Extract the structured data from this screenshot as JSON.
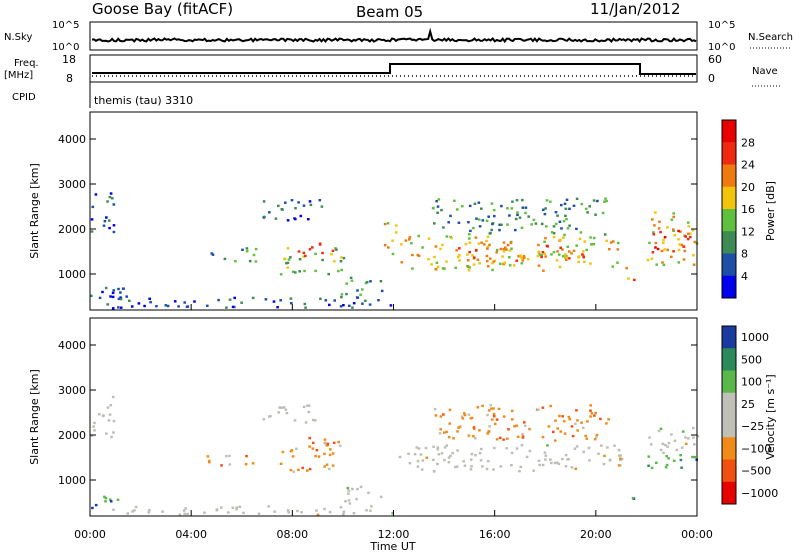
{
  "header": {
    "station": "Goose Bay (fitACF)",
    "beam": "Beam 05",
    "date": "11/Jan/2012"
  },
  "colors": {
    "power_scale": [
      "#0000ee",
      "#1d4fa8",
      "#3d8a55",
      "#5fbf3f",
      "#f2c40c",
      "#ee7a10",
      "#ef2a10",
      "#e80000"
    ],
    "velocity_scale": [
      "#e60000",
      "#f05010",
      "#f08a18",
      "#c0c0b8",
      "#c0c0b8",
      "#5ab84a",
      "#2a8a5a",
      "#1a3aa0"
    ],
    "ground_scatter": "#bdbdb5"
  },
  "noise_panel": {
    "left_label": "N.Sky",
    "right_label": "N.Search",
    "left_ticks": [
      "10^5",
      "10^0"
    ],
    "right_ticks": [
      "10^5",
      "10^0"
    ]
  },
  "freq_panel": {
    "left_label_1": "Freq.",
    "left_label_2": "[MHz]",
    "right_label": "Nave",
    "left_ticks": [
      "18",
      "8"
    ],
    "right_ticks": [
      "60",
      "0"
    ],
    "cpid_label": "CPID",
    "cpid_value": "themis (tau) 3310"
  },
  "time_axis": {
    "label": "Time UT",
    "ticks": [
      "00:00",
      "04:00",
      "08:00",
      "12:00",
      "16:00",
      "20:00",
      "00:00"
    ]
  },
  "chart_data": [
    {
      "type": "heatmap",
      "title": "Power",
      "ylabel": "Slant Range [km]",
      "ylim": [
        200,
        4600
      ],
      "yticks": [
        "1000",
        "2000",
        "3000",
        "4000"
      ],
      "xlim_hours": [
        0,
        24
      ],
      "colorbar_label": "Power [dB]",
      "colorbar_ticks": [
        "4",
        "8",
        "12",
        "16",
        "20",
        "24",
        "28"
      ],
      "blobs": [
        {
          "t0": 0.0,
          "t1": 0.9,
          "r0": 1900,
          "r1": 2900,
          "level": 1
        },
        {
          "t0": 0.0,
          "t1": 1.5,
          "r0": 400,
          "r1": 900,
          "level": 1
        },
        {
          "t0": 0.5,
          "t1": 12.0,
          "r0": 250,
          "r1": 500,
          "level": 1
        },
        {
          "t0": 4.6,
          "t1": 6.6,
          "r0": 1300,
          "r1": 1600,
          "level": 2
        },
        {
          "t0": 6.8,
          "t1": 9.2,
          "r0": 2200,
          "r1": 2700,
          "level": 1
        },
        {
          "t0": 7.5,
          "t1": 10.0,
          "r0": 1000,
          "r1": 1600,
          "level": 3
        },
        {
          "t0": 8.2,
          "t1": 9.6,
          "r0": 1350,
          "r1": 1750,
          "level": 5
        },
        {
          "t0": 9.8,
          "t1": 11.6,
          "r0": 500,
          "r1": 1000,
          "level": 2
        },
        {
          "t0": 11.6,
          "t1": 12.1,
          "r0": 1300,
          "r1": 2200,
          "level": 4
        },
        {
          "t0": 12.2,
          "t1": 21.2,
          "r0": 1100,
          "r1": 1900,
          "level": 4
        },
        {
          "t0": 14.5,
          "t1": 19.5,
          "r0": 1300,
          "r1": 1700,
          "level": 5
        },
        {
          "t0": 13.5,
          "t1": 20.5,
          "r0": 1900,
          "r1": 2700,
          "level": 2
        },
        {
          "t0": 21.1,
          "t1": 21.5,
          "r0": 700,
          "r1": 1000,
          "level": 5
        },
        {
          "t0": 22.0,
          "t1": 24.0,
          "r0": 1200,
          "r1": 2400,
          "level": 4
        },
        {
          "t0": 22.2,
          "t1": 23.7,
          "r0": 1500,
          "r1": 2000,
          "level": 6
        }
      ]
    },
    {
      "type": "heatmap",
      "title": "Velocity",
      "ylabel": "Slant Range [km]",
      "ylim": [
        200,
        4600
      ],
      "yticks": [
        "1000",
        "2000",
        "3000",
        "4000"
      ],
      "xlim_hours": [
        0,
        24
      ],
      "colorbar_label": "Velocity [m s⁻¹]",
      "colorbar_ticks": [
        "1000",
        "500",
        "100",
        "25",
        "−25",
        "−100",
        "−500",
        "−1000"
      ],
      "blobs": [
        {
          "t0": 0.0,
          "t1": 0.9,
          "r0": 1900,
          "r1": 2900,
          "cat": "ground"
        },
        {
          "t0": 0.0,
          "t1": 1.2,
          "r0": 400,
          "r1": 750,
          "cat": "pos"
        },
        {
          "t0": 0.5,
          "t1": 12.0,
          "r0": 250,
          "r1": 450,
          "cat": "ground"
        },
        {
          "t0": 4.6,
          "t1": 6.4,
          "r0": 1300,
          "r1": 1600,
          "cat": "neg"
        },
        {
          "t0": 6.8,
          "t1": 9.2,
          "r0": 2300,
          "r1": 2700,
          "cat": "ground"
        },
        {
          "t0": 7.5,
          "t1": 10.0,
          "r0": 1200,
          "r1": 2000,
          "cat": "neg"
        },
        {
          "t0": 10.0,
          "t1": 11.6,
          "r0": 500,
          "r1": 900,
          "cat": "ground"
        },
        {
          "t0": 12.2,
          "t1": 21.0,
          "r0": 1200,
          "r1": 1800,
          "cat": "ground"
        },
        {
          "t0": 13.5,
          "t1": 20.5,
          "r0": 1900,
          "r1": 2700,
          "cat": "neg"
        },
        {
          "t0": 20.8,
          "t1": 21.2,
          "r0": 1300,
          "r1": 1600,
          "cat": "neg"
        },
        {
          "t0": 21.3,
          "t1": 21.7,
          "r0": 600,
          "r1": 900,
          "cat": "pos"
        },
        {
          "t0": 22.0,
          "t1": 24.0,
          "r0": 1200,
          "r1": 1600,
          "cat": "pos"
        },
        {
          "t0": 22.0,
          "t1": 24.0,
          "r0": 1600,
          "r1": 2200,
          "cat": "ground"
        }
      ]
    }
  ]
}
